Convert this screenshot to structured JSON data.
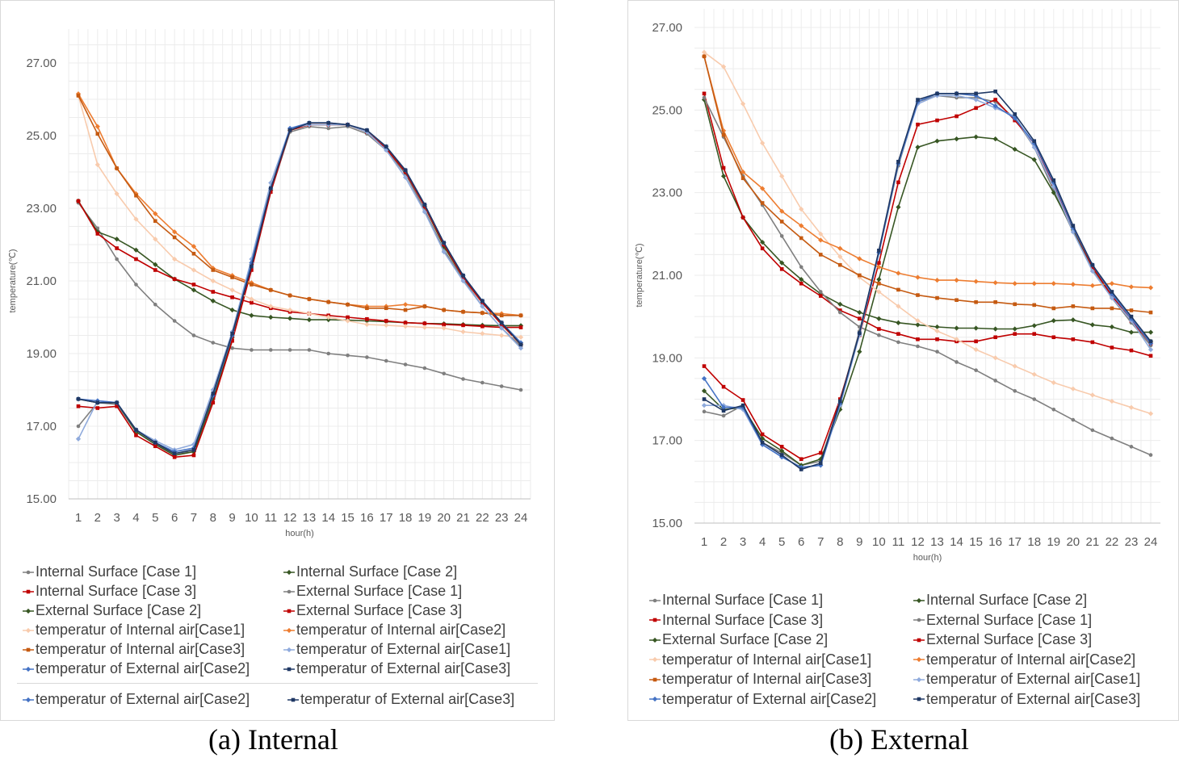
{
  "captions": {
    "a": "(a) Internal",
    "b": "(b) External"
  },
  "legend_labels": [
    "Internal Surface [Case 1]",
    "Internal Surface [Case 2]",
    "Internal Surface [Case 3]",
    "External Surface [Case 1]",
    "External Surface [Case 2]",
    "External Surface [Case 3]",
    "temperatur of Internal air[Case1]",
    "temperatur of Internal air[Case2]",
    "temperatur of Internal air[Case3]",
    "temperatur of External air[Case1]",
    "temperatur of External air[Case2]",
    "temperatur of External air[Case3]"
  ],
  "legend_extra_a": [
    "temperatur of External air[Case2]",
    "temperatur of External air[Case3]"
  ],
  "chart_data": [
    {
      "type": "line",
      "xlabel": "hour(h)",
      "ylabel": "temperature(℃)",
      "ylim": [
        15,
        27
      ],
      "yticks": [
        "15.00",
        "17.00",
        "19.00",
        "21.00",
        "23.00",
        "25.00",
        "27.00"
      ],
      "x": [
        1,
        2,
        3,
        4,
        5,
        6,
        7,
        8,
        9,
        10,
        11,
        12,
        13,
        14,
        15,
        16,
        17,
        18,
        19,
        20,
        21,
        22,
        23,
        24
      ],
      "grid": true,
      "series": [
        {
          "name": "Internal Surface [Case 1]",
          "color": "#7f7f7f",
          "marker": "circle",
          "values": [
            23.15,
            22.45,
            21.6,
            20.9,
            20.35,
            19.9,
            19.5,
            19.3,
            19.15,
            19.1,
            19.1,
            19.1,
            19.1,
            19.0,
            18.95,
            18.9,
            18.8,
            18.7,
            18.6,
            18.45,
            18.3,
            18.2,
            18.1,
            18.0
          ]
        },
        {
          "name": "Internal Surface [Case 2]",
          "color": "#375623",
          "marker": "diamond",
          "values": [
            23.2,
            22.35,
            22.15,
            21.85,
            21.45,
            21.05,
            20.75,
            20.45,
            20.2,
            20.05,
            20.0,
            19.97,
            19.93,
            19.93,
            19.92,
            19.9,
            19.88,
            19.85,
            19.83,
            19.82,
            19.8,
            19.78,
            19.77,
            19.77
          ]
        },
        {
          "name": "Internal Surface [Case 3]",
          "color": "#c00000",
          "marker": "square",
          "values": [
            23.2,
            22.3,
            21.9,
            21.6,
            21.3,
            21.05,
            20.9,
            20.7,
            20.55,
            20.4,
            20.25,
            20.15,
            20.1,
            20.05,
            20.0,
            19.95,
            19.9,
            19.85,
            19.83,
            19.8,
            19.78,
            19.75,
            19.72,
            19.72
          ]
        },
        {
          "name": "External Surface [Case 1]",
          "color": "#7f7f7f",
          "marker": "circle",
          "values": [
            17.0,
            17.65,
            17.6,
            16.85,
            16.5,
            16.25,
            16.3,
            17.8,
            19.4,
            21.4,
            23.45,
            25.1,
            25.25,
            25.2,
            25.25,
            25.05,
            24.6,
            23.95,
            22.95,
            21.85,
            21.05,
            20.3,
            19.7,
            19.2
          ]
        },
        {
          "name": "External Surface [Case 2]",
          "color": "#375623",
          "marker": "diamond",
          "values": [
            17.75,
            17.65,
            17.65,
            16.85,
            16.5,
            16.2,
            16.3,
            17.75,
            19.45,
            21.45,
            23.5,
            25.15,
            25.3,
            25.3,
            25.3,
            25.1,
            24.65,
            24.0,
            23.05,
            21.95,
            21.1,
            20.4,
            19.8,
            19.25
          ]
        },
        {
          "name": "External Surface [Case 3]",
          "color": "#c00000",
          "marker": "square",
          "values": [
            17.55,
            17.5,
            17.55,
            16.75,
            16.45,
            16.15,
            16.2,
            17.65,
            19.35,
            21.3,
            23.45,
            25.15,
            25.3,
            25.3,
            25.3,
            25.1,
            24.65,
            24.0,
            23.05,
            22.0,
            21.1,
            20.4,
            19.8,
            19.25
          ]
        },
        {
          "name": "temperatur of Internal air[Case1]",
          "color": "#f8cbad",
          "marker": "diamond",
          "values": [
            26.1,
            24.2,
            23.4,
            22.7,
            22.15,
            21.6,
            21.3,
            21.0,
            20.75,
            20.5,
            20.3,
            20.2,
            20.1,
            20.0,
            19.9,
            19.8,
            19.78,
            19.75,
            19.72,
            19.7,
            19.6,
            19.55,
            19.5,
            19.45
          ]
        },
        {
          "name": "temperatur of Internal air[Case2]",
          "color": "#ed7d31",
          "marker": "diamond",
          "values": [
            26.15,
            25.25,
            24.1,
            23.4,
            22.85,
            22.35,
            21.95,
            21.35,
            21.15,
            20.95,
            20.75,
            20.6,
            20.5,
            20.42,
            20.35,
            20.3,
            20.3,
            20.35,
            20.3,
            20.2,
            20.15,
            20.12,
            20.1,
            20.05
          ]
        },
        {
          "name": "temperatur of Internal air[Case3]",
          "color": "#c55a11",
          "marker": "square",
          "values": [
            26.1,
            25.05,
            24.1,
            23.35,
            22.65,
            22.2,
            21.75,
            21.3,
            21.1,
            20.9,
            20.75,
            20.6,
            20.5,
            20.42,
            20.35,
            20.25,
            20.25,
            20.2,
            20.3,
            20.2,
            20.15,
            20.12,
            20.05,
            20.05
          ]
        },
        {
          "name": "temperatur of External air[Case1]",
          "color": "#8faadc",
          "marker": "diamond",
          "values": [
            16.65,
            17.7,
            17.65,
            16.9,
            16.6,
            16.35,
            16.5,
            18.0,
            19.6,
            21.6,
            23.7,
            25.2,
            25.3,
            25.3,
            25.3,
            25.1,
            24.6,
            23.85,
            22.9,
            21.8,
            21.0,
            20.3,
            19.7,
            19.15
          ]
        },
        {
          "name": "temperatur of External air[Case2]",
          "color": "#4472c4",
          "marker": "diamond",
          "values": [
            17.75,
            17.7,
            17.65,
            16.9,
            16.55,
            16.3,
            16.4,
            17.85,
            19.5,
            21.5,
            23.55,
            25.2,
            25.35,
            25.35,
            25.3,
            25.15,
            24.7,
            24.05,
            23.1,
            22.05,
            21.15,
            20.45,
            19.85,
            19.3
          ]
        },
        {
          "name": "temperatur of External air[Case3]",
          "color": "#1f3864",
          "marker": "square",
          "values": [
            17.75,
            17.65,
            17.65,
            16.9,
            16.55,
            16.25,
            16.35,
            17.9,
            19.55,
            21.4,
            23.55,
            25.15,
            25.35,
            25.35,
            25.3,
            25.15,
            24.7,
            24.05,
            23.1,
            22.05,
            21.15,
            20.45,
            19.85,
            19.25
          ]
        }
      ]
    },
    {
      "type": "line",
      "xlabel": "hour(h)",
      "ylabel": "temperature(℃)",
      "ylim": [
        15,
        27
      ],
      "yticks": [
        "15.00",
        "17.00",
        "19.00",
        "21.00",
        "23.00",
        "25.00",
        "27.00"
      ],
      "x": [
        1,
        2,
        3,
        4,
        5,
        6,
        7,
        8,
        9,
        10,
        11,
        12,
        13,
        14,
        15,
        16,
        17,
        18,
        19,
        20,
        21,
        22,
        23,
        24
      ],
      "grid": true,
      "series": [
        {
          "name": "Internal Surface [Case 1]",
          "color": "#7f7f7f",
          "marker": "circle",
          "values": [
            17.7,
            17.6,
            17.85,
            16.95,
            16.7,
            16.4,
            16.5,
            17.95,
            19.65,
            21.55,
            23.65,
            25.2,
            25.35,
            25.3,
            25.3,
            25.2,
            24.8,
            24.1,
            23.05,
            22.05,
            21.15,
            20.45,
            19.85,
            19.3
          ]
        },
        {
          "name": "Internal Surface [Case 2]",
          "color": "#375623",
          "marker": "diamond",
          "values": [
            25.25,
            23.4,
            22.4,
            21.8,
            21.3,
            20.9,
            20.55,
            20.3,
            20.1,
            19.95,
            19.85,
            19.8,
            19.75,
            19.72,
            19.72,
            19.7,
            19.7,
            19.78,
            19.9,
            19.92,
            19.8,
            19.75,
            19.62,
            19.62
          ]
        },
        {
          "name": "Internal Surface [Case 3]",
          "color": "#c00000",
          "marker": "square",
          "values": [
            25.4,
            23.6,
            22.4,
            21.65,
            21.15,
            20.8,
            20.5,
            20.15,
            19.95,
            19.7,
            19.58,
            19.45,
            19.45,
            19.4,
            19.4,
            19.5,
            19.58,
            19.58,
            19.5,
            19.45,
            19.38,
            19.25,
            19.18,
            19.05
          ]
        },
        {
          "name": "External Surface [Case 1]",
          "color": "#7f7f7f",
          "marker": "circle",
          "values": [
            25.3,
            24.35,
            23.4,
            22.7,
            21.95,
            21.2,
            20.6,
            20.1,
            19.75,
            19.55,
            19.38,
            19.28,
            19.15,
            18.9,
            18.7,
            18.45,
            18.2,
            18.0,
            17.75,
            17.5,
            17.25,
            17.05,
            16.85,
            16.65
          ]
        },
        {
          "name": "External Surface [Case 2]",
          "color": "#375623",
          "marker": "diamond",
          "values": [
            18.2,
            17.75,
            17.8,
            17.05,
            16.75,
            16.4,
            16.55,
            17.75,
            19.15,
            20.9,
            22.65,
            24.1,
            24.25,
            24.3,
            24.35,
            24.3,
            24.05,
            23.8,
            23.0,
            22.1,
            21.2,
            20.5,
            19.9,
            19.4
          ]
        },
        {
          "name": "External Surface [Case 3]",
          "color": "#c00000",
          "marker": "square",
          "values": [
            18.8,
            18.3,
            17.98,
            17.15,
            16.85,
            16.55,
            16.7,
            18.0,
            19.55,
            21.3,
            23.25,
            24.65,
            24.75,
            24.85,
            25.05,
            25.25,
            24.75,
            24.2,
            23.2,
            22.15,
            21.2,
            20.5,
            19.9,
            19.35
          ]
        },
        {
          "name": "temperatur of Internal air[Case1]",
          "color": "#f8cbad",
          "marker": "diamond",
          "values": [
            26.4,
            26.05,
            25.15,
            24.2,
            23.4,
            22.6,
            22.0,
            21.45,
            20.95,
            20.6,
            20.25,
            19.9,
            19.65,
            19.45,
            19.2,
            19.0,
            18.8,
            18.6,
            18.4,
            18.25,
            18.1,
            17.95,
            17.8,
            17.65
          ]
        },
        {
          "name": "temperatur of Internal air[Case2]",
          "color": "#ed7d31",
          "marker": "diamond",
          "values": [
            26.3,
            24.5,
            23.5,
            23.1,
            22.55,
            22.2,
            21.85,
            21.65,
            21.4,
            21.2,
            21.05,
            20.95,
            20.88,
            20.88,
            20.85,
            20.82,
            20.8,
            20.8,
            20.8,
            20.78,
            20.75,
            20.8,
            20.72,
            20.7
          ]
        },
        {
          "name": "temperatur of Internal air[Case3]",
          "color": "#c55a11",
          "marker": "square",
          "values": [
            26.3,
            24.4,
            23.35,
            22.75,
            22.3,
            21.9,
            21.5,
            21.25,
            21.0,
            20.8,
            20.65,
            20.52,
            20.45,
            20.4,
            20.35,
            20.35,
            20.3,
            20.28,
            20.2,
            20.25,
            20.2,
            20.2,
            20.15,
            20.1
          ]
        },
        {
          "name": "temperatur of External air[Case1]",
          "color": "#8faadc",
          "marker": "diamond",
          "values": [
            17.85,
            17.85,
            17.75,
            16.9,
            16.6,
            16.35,
            16.4,
            17.85,
            19.55,
            21.55,
            23.7,
            25.15,
            25.35,
            25.35,
            25.25,
            25.05,
            24.85,
            24.1,
            23.15,
            22.05,
            21.1,
            20.45,
            19.9,
            19.2
          ]
        },
        {
          "name": "temperatur of External air[Case2]",
          "color": "#4472c4",
          "marker": "diamond",
          "values": [
            18.5,
            17.8,
            17.8,
            16.9,
            16.6,
            16.35,
            16.4,
            17.9,
            19.6,
            21.55,
            23.7,
            25.2,
            25.4,
            25.4,
            25.35,
            25.1,
            24.8,
            24.2,
            23.25,
            22.15,
            21.25,
            20.55,
            19.95,
            19.35
          ]
        },
        {
          "name": "temperatur of External air[Case3]",
          "color": "#1f3864",
          "marker": "square",
          "values": [
            18.0,
            17.72,
            17.85,
            16.95,
            16.65,
            16.3,
            16.45,
            17.95,
            19.6,
            21.6,
            23.75,
            25.25,
            25.4,
            25.4,
            25.4,
            25.45,
            24.9,
            24.25,
            23.3,
            22.2,
            21.25,
            20.6,
            20.0,
            19.4
          ]
        }
      ]
    }
  ]
}
